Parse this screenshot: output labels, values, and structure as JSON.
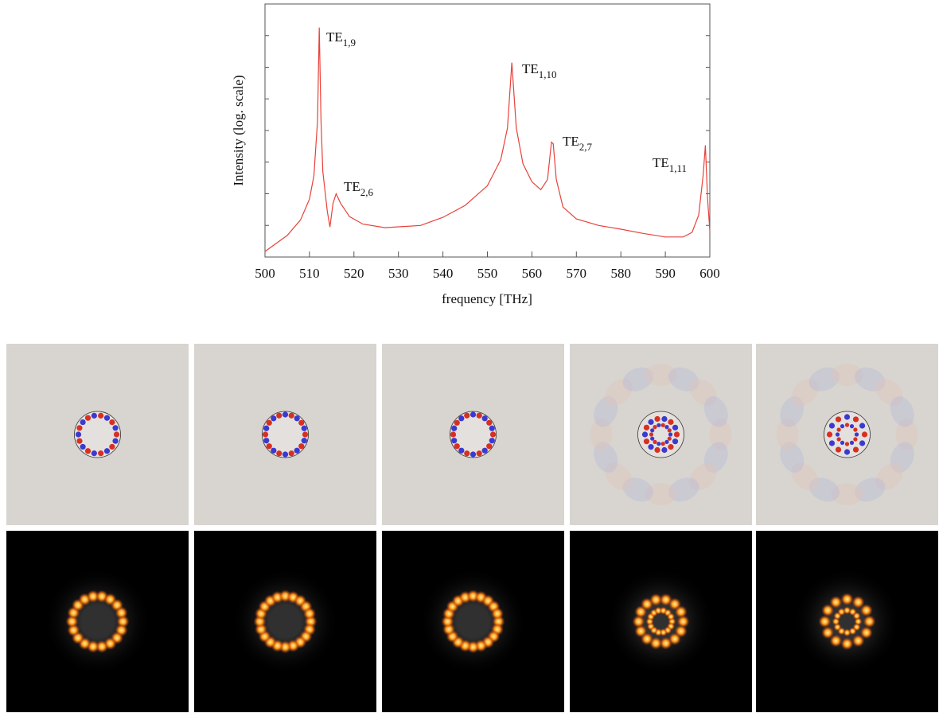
{
  "chart_data": {
    "type": "line",
    "x_label": "frequency [THz]",
    "y_label": "Intensity (log. scale)",
    "log_y": true,
    "ylim": [
      1,
      100000000
    ],
    "xlim": [
      500,
      600
    ],
    "xticks": [
      500,
      510,
      520,
      530,
      540,
      550,
      560,
      570,
      580,
      590,
      600
    ],
    "x": [
      500,
      505,
      508,
      510,
      511,
      511.8,
      512.2,
      512.6,
      513,
      514,
      514.6,
      515.3,
      516,
      517,
      519,
      522,
      527,
      535,
      540,
      545,
      550,
      553,
      554.5,
      555.5,
      556.5,
      558,
      560,
      562,
      563.5,
      564.4,
      564.8,
      565.5,
      567,
      570,
      575,
      580,
      585,
      590,
      594,
      596,
      597.5,
      598.5,
      599,
      599.5,
      600
    ],
    "series": [
      {
        "color": "#e8413a",
        "values": [
          1.5,
          4.8,
          15,
          68,
          380,
          20000,
          18000000,
          20000,
          500,
          28,
          8.9,
          50,
          100,
          50,
          19,
          11,
          8.5,
          10,
          18,
          43,
          180,
          1200,
          12000,
          1400000,
          12000,
          890,
          240,
          135,
          280,
          4300,
          3800,
          280,
          38,
          16,
          10,
          7.6,
          5.6,
          4.3,
          4.3,
          6,
          21,
          380,
          3400,
          68,
          6.8
        ]
      }
    ],
    "annotations": [
      {
        "text": "TE",
        "sub": "1,9"
      },
      {
        "text": "TE",
        "sub": "2,6"
      },
      {
        "text": "TE",
        "sub": "1,10"
      },
      {
        "text": "TE",
        "sub": "2,7"
      },
      {
        "text": "TE",
        "sub": "1,11"
      }
    ]
  }
}
